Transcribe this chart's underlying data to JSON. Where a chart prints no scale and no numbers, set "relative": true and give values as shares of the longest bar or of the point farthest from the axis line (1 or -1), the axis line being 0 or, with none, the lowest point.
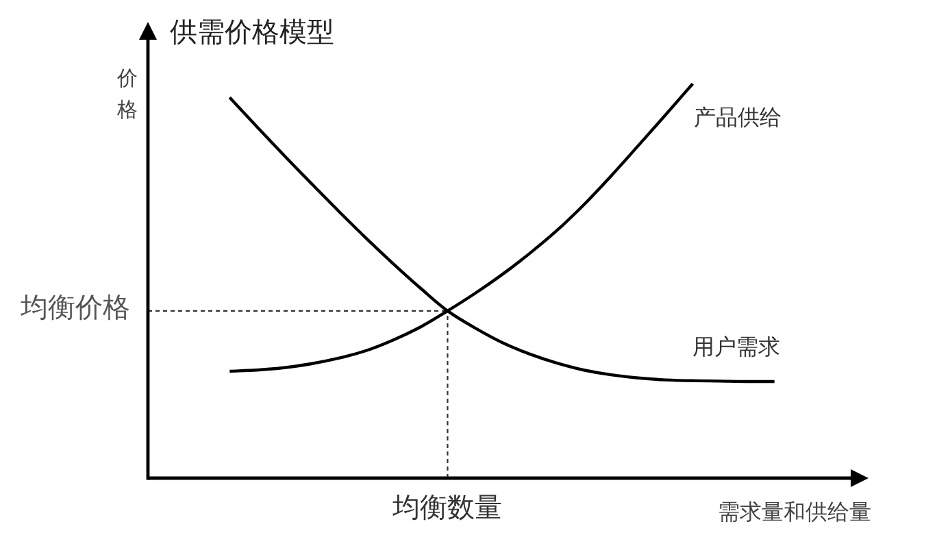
{
  "chart_data": {
    "type": "line",
    "title": "供需价格模型",
    "ylabel": "价格",
    "xlabel": "需求量和供给量",
    "relative": true,
    "categories": [
      null,
      null,
      null,
      null,
      null,
      null,
      null,
      null,
      null,
      null,
      null,
      null,
      null,
      null,
      null,
      null,
      null,
      null,
      null,
      null,
      null,
      null,
      null,
      null,
      null,
      null,
      null
    ],
    "series": [
      {
        "name": "产品供给",
        "color": "#000000",
        "values": [
          null,
          null,
          null,
          0.271,
          0.274,
          0.28,
          0.29,
          0.304,
          0.323,
          0.35,
          0.383,
          0.424,
          0.468,
          0.516,
          0.569,
          0.627,
          0.693,
          0.766,
          0.843,
          0.921,
          1.0,
          null,
          null,
          null,
          null,
          null,
          null
        ]
      },
      {
        "name": "用户需求",
        "color": "#000000",
        "values": [
          null,
          null,
          null,
          0.965,
          0.891,
          0.818,
          0.747,
          0.677,
          0.609,
          0.544,
          0.482,
          0.424,
          0.381,
          0.344,
          0.315,
          0.292,
          0.274,
          0.262,
          0.254,
          0.249,
          0.247,
          0.246,
          0.245,
          0.245,
          null,
          null,
          null
        ]
      }
    ],
    "ref_lines": [
      {
        "axis": "y",
        "value": 0.424,
        "label": "均衡价格",
        "line_style": "dashed",
        "color": "#333333"
      }
    ],
    "annotations": [
      "均衡数量"
    ]
  }
}
